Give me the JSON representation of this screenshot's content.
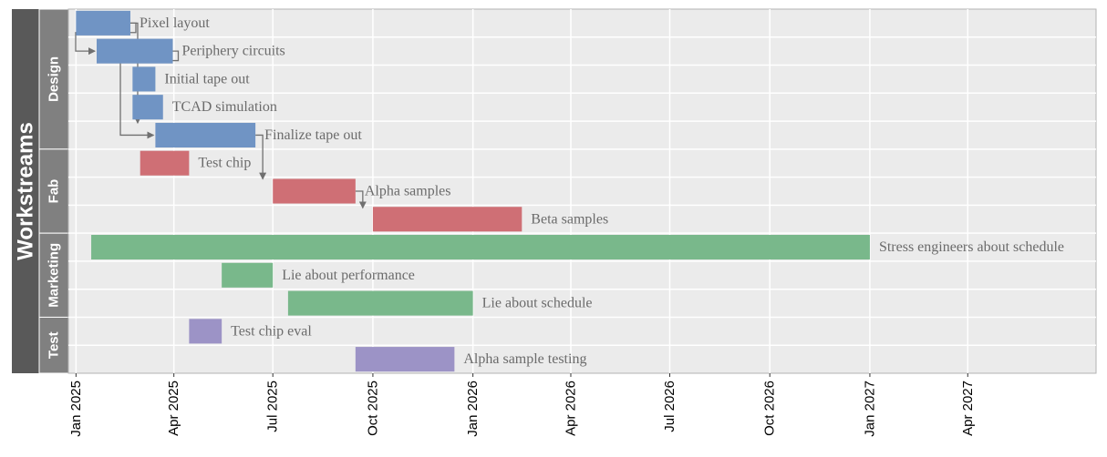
{
  "chart_data": {
    "type": "gantt",
    "outer_label": "Workstreams",
    "x_axis": {
      "type": "date",
      "range": [
        "2024-12-25",
        "2027-07-28"
      ],
      "ticks": [
        {
          "date": "2025-01-01",
          "label": "Jan 2025"
        },
        {
          "date": "2025-04-01",
          "label": "Apr 2025"
        },
        {
          "date": "2025-07-01",
          "label": "Jul 2025"
        },
        {
          "date": "2025-10-01",
          "label": "Oct 2025"
        },
        {
          "date": "2026-01-01",
          "label": "Jan 2026"
        },
        {
          "date": "2026-04-01",
          "label": "Apr 2026"
        },
        {
          "date": "2026-07-01",
          "label": "Jul 2026"
        },
        {
          "date": "2026-10-01",
          "label": "Oct 2026"
        },
        {
          "date": "2027-01-01",
          "label": "Jan 2027"
        },
        {
          "date": "2027-04-01",
          "label": "Apr 2027"
        }
      ]
    },
    "groups": [
      {
        "name": "Design",
        "color": "#7094c4",
        "rows": 5
      },
      {
        "name": "Fab",
        "color": "#cf6f75",
        "rows": 3
      },
      {
        "name": "Marketing",
        "color": "#79b88b",
        "rows": 3
      },
      {
        "name": "Test",
        "color": "#9c93c6",
        "rows": 2
      }
    ],
    "tasks": [
      {
        "name": "Pixel layout",
        "group": "Design",
        "start": "2025-01-01",
        "end": "2025-02-20"
      },
      {
        "name": "Periphery circuits",
        "group": "Design",
        "start": "2025-01-20",
        "end": "2025-03-31"
      },
      {
        "name": "Initial tape out",
        "group": "Design",
        "start": "2025-02-22",
        "end": "2025-03-15"
      },
      {
        "name": "TCAD simulation",
        "group": "Design",
        "start": "2025-02-22",
        "end": "2025-03-22"
      },
      {
        "name": "Finalize tape out",
        "group": "Design",
        "start": "2025-03-15",
        "end": "2025-06-15"
      },
      {
        "name": "Test chip",
        "group": "Fab",
        "start": "2025-03-01",
        "end": "2025-04-15"
      },
      {
        "name": "Alpha samples",
        "group": "Fab",
        "start": "2025-07-01",
        "end": "2025-09-15"
      },
      {
        "name": "Beta samples",
        "group": "Fab",
        "start": "2025-10-01",
        "end": "2026-02-15"
      },
      {
        "name": "Stress engineers about schedule",
        "group": "Marketing",
        "start": "2025-01-15",
        "end": "2027-01-01"
      },
      {
        "name": "Lie about performance",
        "group": "Marketing",
        "start": "2025-05-15",
        "end": "2025-07-01"
      },
      {
        "name": "Lie about schedule",
        "group": "Marketing",
        "start": "2025-07-15",
        "end": "2026-01-01"
      },
      {
        "name": "Test chip eval",
        "group": "Test",
        "start": "2025-04-15",
        "end": "2025-05-15"
      },
      {
        "name": "Alpha sample testing",
        "group": "Test",
        "start": "2025-09-15",
        "end": "2025-12-15"
      }
    ],
    "dependencies": [
      {
        "from": "Pixel layout",
        "to": "Periphery circuits"
      },
      {
        "from": "Pixel layout",
        "to": "Finalize tape out"
      },
      {
        "from": "Periphery circuits",
        "to": "Finalize tape out"
      },
      {
        "from": "Finalize tape out",
        "to": "Alpha samples"
      },
      {
        "from": "Alpha samples",
        "to": "Beta samples"
      }
    ],
    "grid": true,
    "legend": "none"
  }
}
